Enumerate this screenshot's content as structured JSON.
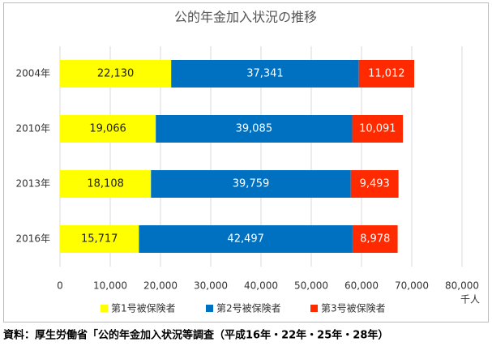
{
  "chart_data": {
    "type": "stacked-barh",
    "title": "公的年金加入状況の推移",
    "categories": [
      "2004年",
      "2010年",
      "2013年",
      "2016年"
    ],
    "series": [
      {
        "name": "第1号被保険者",
        "color": "#ffff00",
        "values": [
          22130,
          19066,
          18108,
          15717
        ],
        "value_labels": [
          "22,130",
          "19,066",
          "18,108",
          "15,717"
        ]
      },
      {
        "name": "第2号被保険者",
        "color": "#0070c0",
        "values": [
          37341,
          39085,
          39759,
          42497
        ],
        "value_labels": [
          "37,341",
          "39,085",
          "39,759",
          "42,497"
        ]
      },
      {
        "name": "第3号被保険者",
        "color": "#ff2a00",
        "values": [
          11012,
          10091,
          9493,
          8978
        ],
        "value_labels": [
          "11,012",
          "10,091",
          "9,493",
          "8,978"
        ]
      }
    ],
    "xlim": [
      0,
      80000
    ],
    "xticks": [
      0,
      {
        "value": 10000,
        "label": "10,000"
      },
      {
        "value": 20000,
        "label": "20,000"
      },
      {
        "value": 30000,
        "label": "30,000"
      },
      {
        "value": 40000,
        "label": "40,000"
      },
      {
        "value": 50000,
        "label": "50,000"
      },
      {
        "value": 60000,
        "label": "60,000"
      },
      {
        "value": 70000,
        "label": "70,000"
      },
      {
        "value": 80000,
        "label": "80,000"
      }
    ],
    "xlabel": "千人",
    "grid": true,
    "legend": "bottom",
    "source": "資料：厚生労働省「公的年金加入状況等調査（平成16年・22年・25年・28年）"
  }
}
